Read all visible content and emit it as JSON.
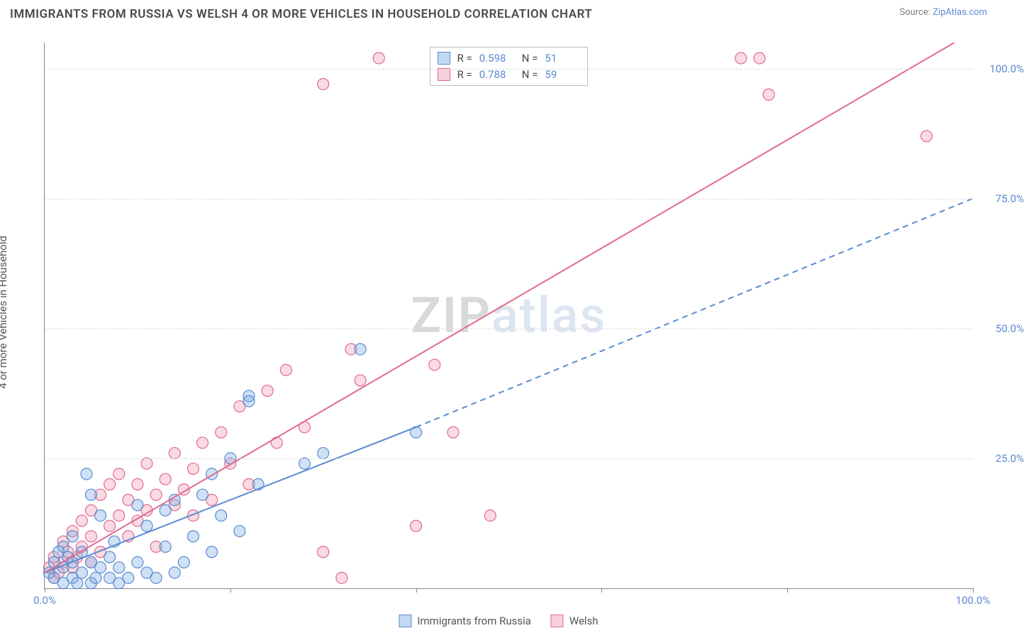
{
  "title": "IMMIGRANTS FROM RUSSIA VS WELSH 4 OR MORE VEHICLES IN HOUSEHOLD CORRELATION CHART",
  "source_prefix": "Source: ",
  "source_name": "ZipAtlas.com",
  "y_axis_label": "4 or more Vehicles in Household",
  "watermark": {
    "z": "ZIP",
    "rest": "atlas"
  },
  "chart": {
    "type": "scatter_correlation",
    "xlim": [
      0,
      100
    ],
    "ylim": [
      0,
      105
    ],
    "x_ticks": [
      0,
      20,
      40,
      60,
      80,
      100
    ],
    "x_tick_labels": {
      "0": "0.0%",
      "100": "100.0%"
    },
    "y_gridlines": [
      25,
      50,
      75,
      100
    ],
    "y_tick_labels": {
      "25": "25.0%",
      "50": "50.0%",
      "75": "75.0%",
      "100": "100.0%"
    },
    "background_color": "#ffffff",
    "grid_color": "#dcdcdc",
    "axis_color": "#888888",
    "tick_label_color": "#5b8bd0",
    "marker_radius": 8,
    "marker_stroke_width": 1.2,
    "line_width": 2,
    "series": {
      "blue": {
        "label": "Immigrants from Russia",
        "fill": "rgba(120,170,225,0.35)",
        "stroke": "#5b8bd0",
        "R": "0.598",
        "N": "51",
        "trend_solid": {
          "x1": 0,
          "y1": 3,
          "x2": 40,
          "y2": 31
        },
        "trend_dash": {
          "x1": 40,
          "y1": 31,
          "x2": 100,
          "y2": 75
        },
        "points": [
          [
            0.5,
            3
          ],
          [
            1,
            2
          ],
          [
            1,
            5
          ],
          [
            1.5,
            7
          ],
          [
            2,
            1
          ],
          [
            2,
            4
          ],
          [
            2,
            8
          ],
          [
            2.5,
            6
          ],
          [
            3,
            2
          ],
          [
            3,
            5
          ],
          [
            3,
            10
          ],
          [
            3.5,
            1
          ],
          [
            4,
            3
          ],
          [
            4,
            7
          ],
          [
            4.5,
            22
          ],
          [
            5,
            1
          ],
          [
            5,
            5
          ],
          [
            5,
            18
          ],
          [
            5.5,
            2
          ],
          [
            6,
            4
          ],
          [
            6,
            14
          ],
          [
            7,
            2
          ],
          [
            7,
            6
          ],
          [
            7.5,
            9
          ],
          [
            8,
            1
          ],
          [
            8,
            4
          ],
          [
            9,
            2
          ],
          [
            10,
            5
          ],
          [
            10,
            16
          ],
          [
            11,
            3
          ],
          [
            11,
            12
          ],
          [
            12,
            2
          ],
          [
            13,
            8
          ],
          [
            13,
            15
          ],
          [
            14,
            3
          ],
          [
            14,
            17
          ],
          [
            15,
            5
          ],
          [
            16,
            10
          ],
          [
            17,
            18
          ],
          [
            18,
            7
          ],
          [
            18,
            22
          ],
          [
            19,
            14
          ],
          [
            20,
            25
          ],
          [
            21,
            11
          ],
          [
            22,
            37
          ],
          [
            23,
            20
          ],
          [
            28,
            24
          ],
          [
            30,
            26
          ],
          [
            40,
            30
          ],
          [
            34,
            46
          ],
          [
            22,
            36
          ]
        ]
      },
      "pink": {
        "label": "Welsh",
        "fill": "rgba(240,150,175,0.35)",
        "stroke": "#e06b8f",
        "R": "0.788",
        "N": "59",
        "trend_solid": {
          "x1": 0,
          "y1": 3,
          "x2": 98,
          "y2": 105
        },
        "trend_dash": null,
        "points": [
          [
            0.5,
            4
          ],
          [
            1,
            2
          ],
          [
            1,
            6
          ],
          [
            1.5,
            3
          ],
          [
            2,
            5
          ],
          [
            2,
            9
          ],
          [
            2.5,
            7
          ],
          [
            3,
            4
          ],
          [
            3,
            11
          ],
          [
            3.5,
            6
          ],
          [
            4,
            8
          ],
          [
            4,
            13
          ],
          [
            5,
            5
          ],
          [
            5,
            10
          ],
          [
            5,
            15
          ],
          [
            6,
            7
          ],
          [
            6,
            18
          ],
          [
            7,
            12
          ],
          [
            7,
            20
          ],
          [
            8,
            14
          ],
          [
            8,
            22
          ],
          [
            9,
            10
          ],
          [
            9,
            17
          ],
          [
            10,
            13
          ],
          [
            10,
            20
          ],
          [
            11,
            15
          ],
          [
            11,
            24
          ],
          [
            12,
            18
          ],
          [
            12,
            8
          ],
          [
            13,
            21
          ],
          [
            14,
            16
          ],
          [
            14,
            26
          ],
          [
            15,
            19
          ],
          [
            16,
            23
          ],
          [
            16,
            14
          ],
          [
            17,
            28
          ],
          [
            18,
            17
          ],
          [
            19,
            30
          ],
          [
            20,
            24
          ],
          [
            21,
            35
          ],
          [
            22,
            20
          ],
          [
            24,
            38
          ],
          [
            25,
            28
          ],
          [
            26,
            42
          ],
          [
            28,
            31
          ],
          [
            30,
            7
          ],
          [
            32,
            2
          ],
          [
            33,
            46
          ],
          [
            34,
            40
          ],
          [
            36,
            102
          ],
          [
            40,
            12
          ],
          [
            42,
            43
          ],
          [
            44,
            30
          ],
          [
            48,
            14
          ],
          [
            75,
            102
          ],
          [
            78,
            95
          ],
          [
            77,
            102
          ],
          [
            95,
            87
          ],
          [
            30,
            97
          ]
        ]
      }
    }
  },
  "corr_legend_labels": {
    "R": "R =",
    "N": "N ="
  },
  "bottom_legend_colors": {
    "blue_fill": "rgba(120,170,225,0.45)",
    "blue_stroke": "#5b8bd0",
    "pink_fill": "rgba(240,150,175,0.45)",
    "pink_stroke": "#e06b8f"
  }
}
